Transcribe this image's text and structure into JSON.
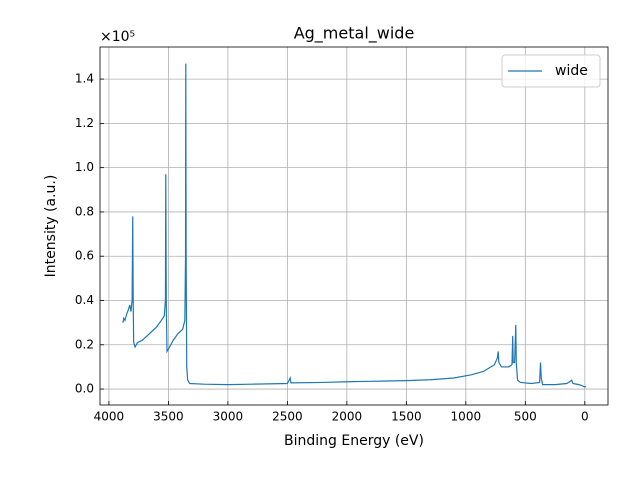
{
  "chart_data": {
    "type": "line",
    "title": "Ag_metal_wide",
    "x_label": "Binding Energy (eV)",
    "y_label": "Intensity (a.u.)",
    "y_offset_label": "×10⁵",
    "xlim": [
      4075,
      -195
    ],
    "ylim": [
      -0.072,
      1.545
    ],
    "xticks": [
      4000,
      3500,
      3000,
      2500,
      2000,
      1500,
      1000,
      500,
      0
    ],
    "yticks": [
      {
        "value": 0,
        "label": "0.0"
      },
      0.2,
      0.4,
      0.6,
      0.8,
      {
        "value": 1,
        "label": "1.0"
      },
      1.2,
      1.4
    ],
    "grid": true,
    "legend": "upper right",
    "x": [
      3883,
      3875,
      3865,
      3850,
      3835,
      3825,
      3815,
      3805,
      3800,
      3796,
      3792,
      3780,
      3760,
      3720,
      3680,
      3640,
      3600,
      3560,
      3535,
      3525,
      3522,
      3518,
      3512,
      3500,
      3460,
      3420,
      3380,
      3362,
      3356,
      3354,
      3351,
      3346,
      3338,
      3320,
      3200,
      3000,
      2800,
      2500,
      2476,
      2470,
      2200,
      2000,
      1800,
      1500,
      1300,
      1100,
      950,
      850,
      760,
      735,
      728,
      722,
      700,
      640,
      612,
      606,
      602,
      590,
      580,
      576,
      565,
      540,
      450,
      380,
      372,
      366,
      355,
      250,
      150,
      110,
      100,
      50,
      20,
      5,
      -10
    ],
    "series": [
      {
        "name": "wide",
        "color": "#1f77b4",
        "values": [
          0.3,
          0.32,
          0.31,
          0.34,
          0.36,
          0.38,
          0.35,
          0.4,
          0.78,
          0.4,
          0.21,
          0.19,
          0.21,
          0.22,
          0.24,
          0.26,
          0.28,
          0.31,
          0.33,
          0.4,
          0.97,
          0.4,
          0.17,
          0.18,
          0.22,
          0.25,
          0.27,
          0.31,
          0.6,
          1.47,
          0.6,
          0.1,
          0.04,
          0.025,
          0.022,
          0.02,
          0.022,
          0.025,
          0.05,
          0.028,
          0.03,
          0.033,
          0.035,
          0.038,
          0.042,
          0.05,
          0.065,
          0.08,
          0.11,
          0.14,
          0.17,
          0.12,
          0.1,
          0.1,
          0.11,
          0.24,
          0.12,
          0.12,
          0.29,
          0.12,
          0.04,
          0.03,
          0.025,
          0.03,
          0.12,
          0.05,
          0.02,
          0.02,
          0.025,
          0.04,
          0.025,
          0.02,
          0.015,
          0.01,
          0.012
        ]
      }
    ]
  }
}
